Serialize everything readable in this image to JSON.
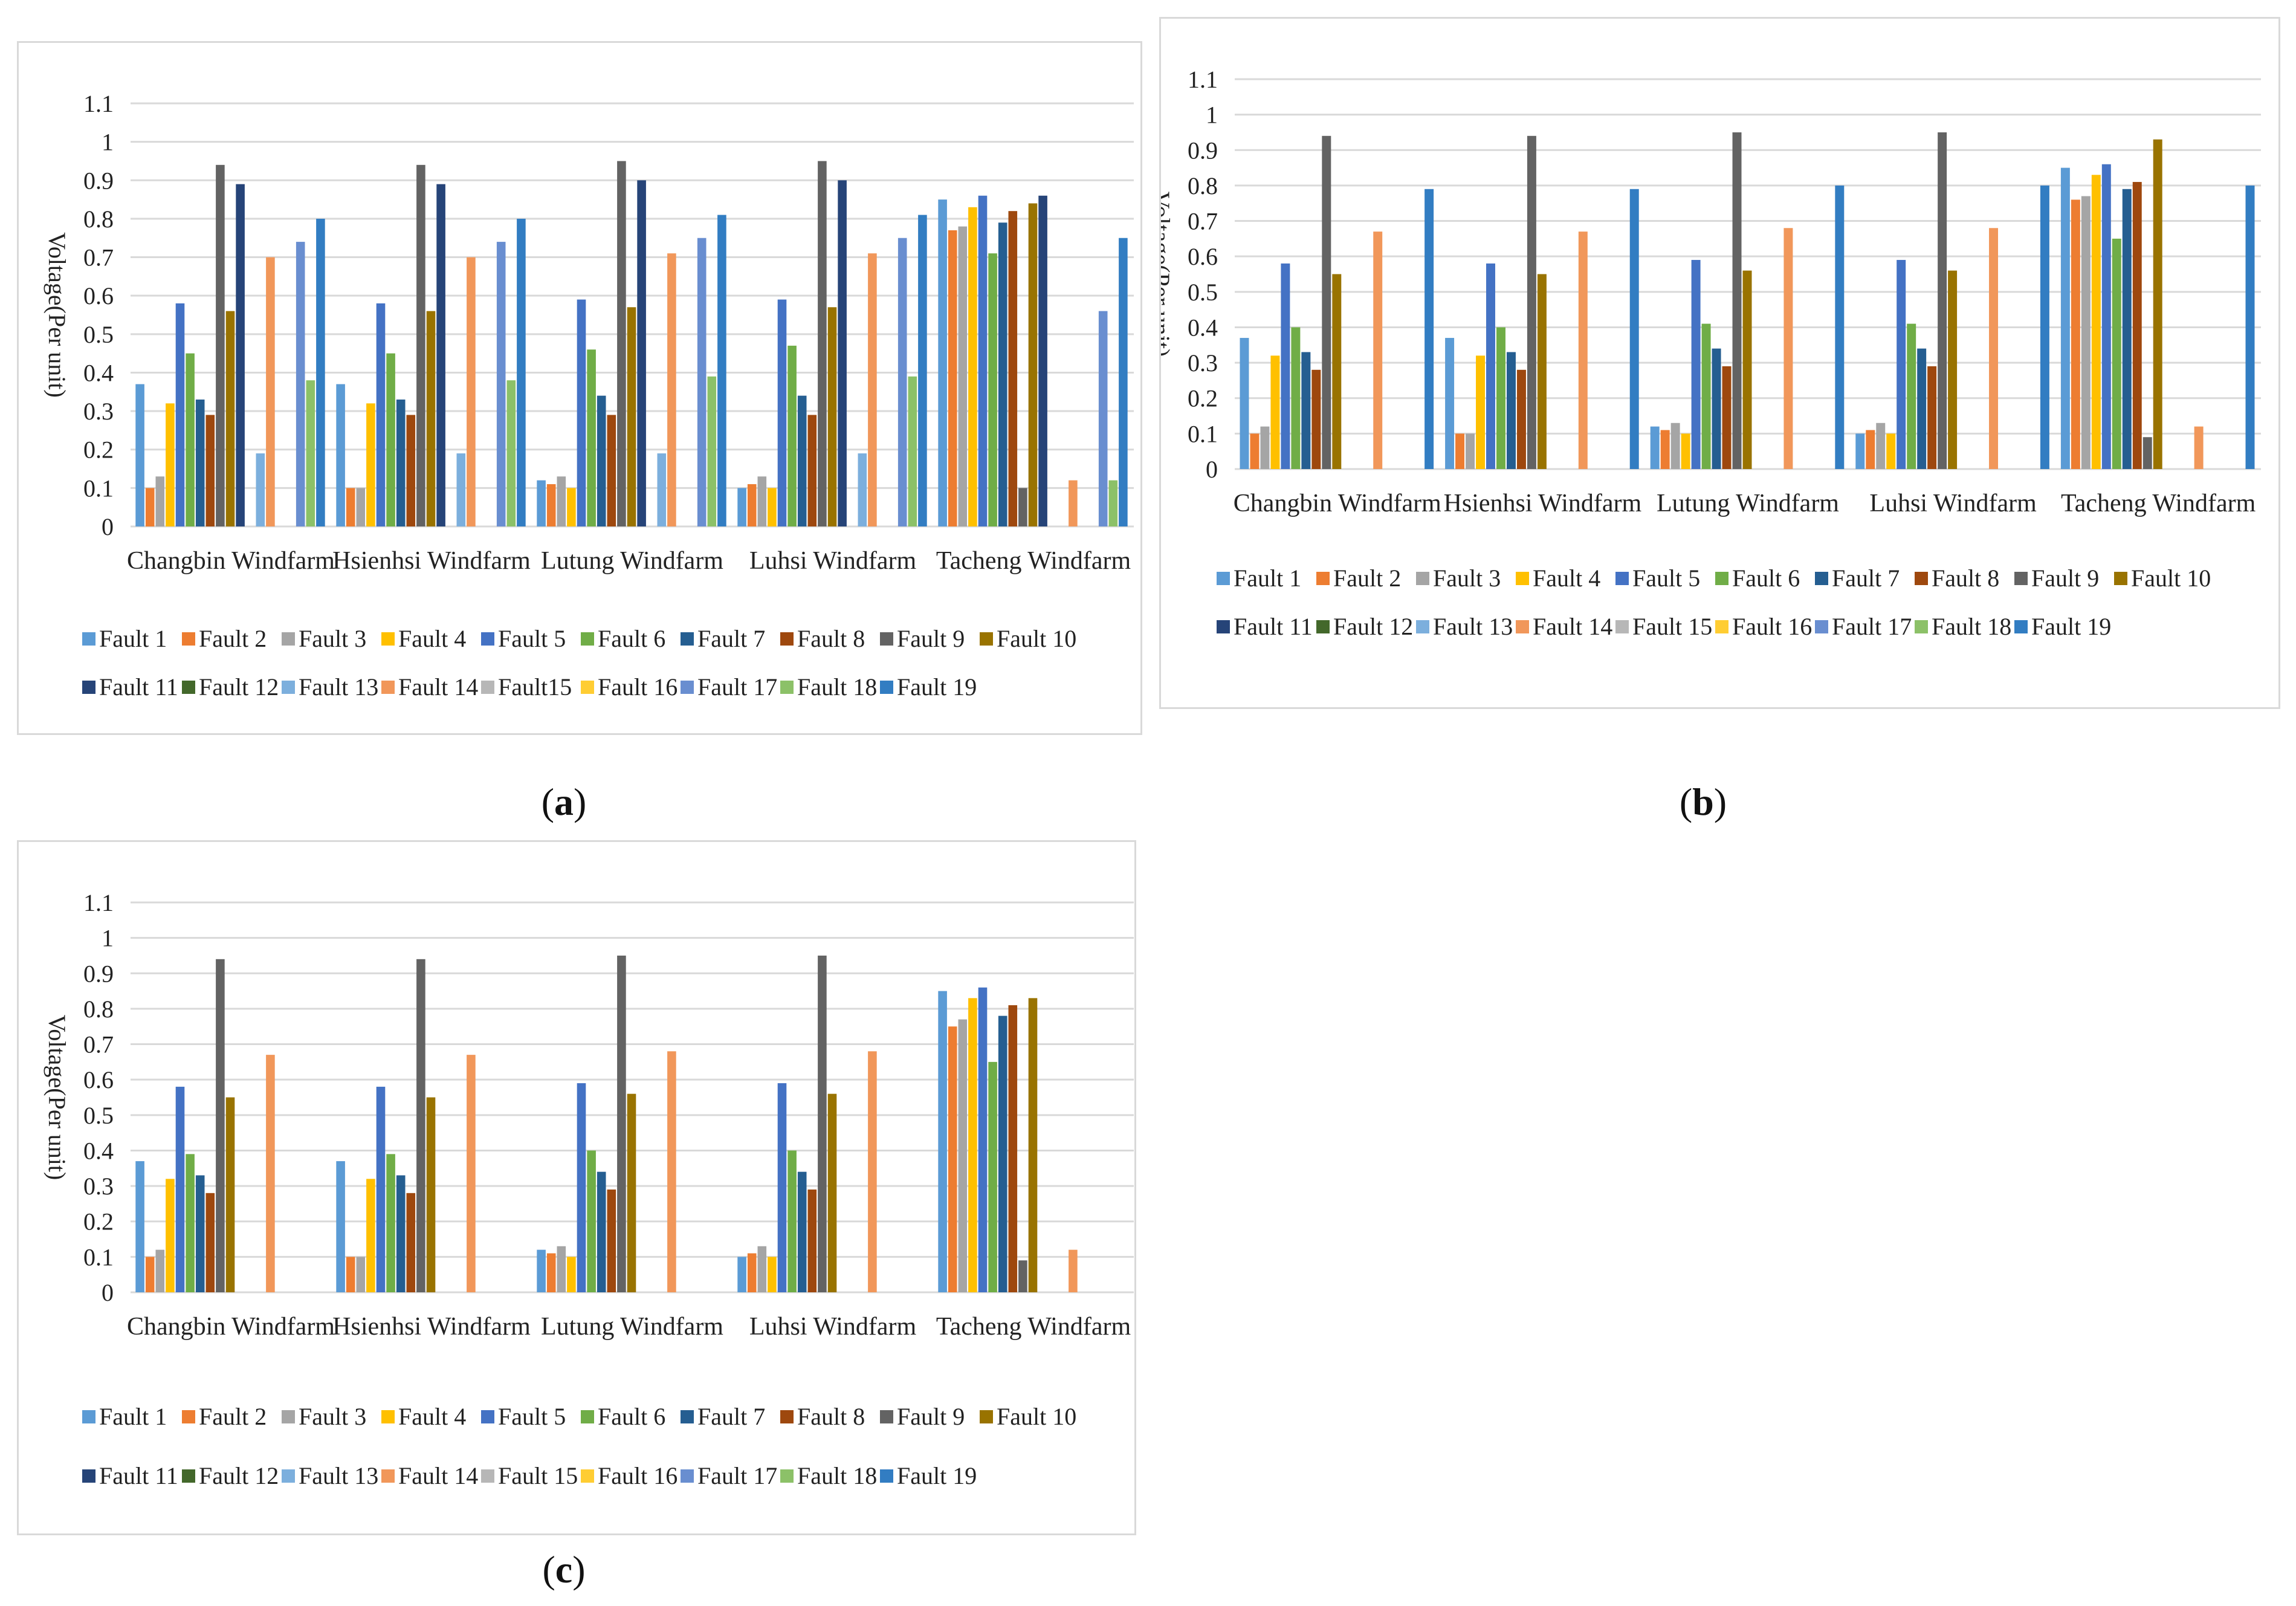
{
  "captions": {
    "a": "a",
    "b": "b",
    "c": "c"
  },
  "chart_data": [
    {
      "id": "a",
      "type": "bar",
      "ylabel": "Voltage(Per unit)",
      "ylim": [
        0,
        1.1
      ],
      "yticks": [
        "0",
        "0.1",
        "0.2",
        "0.3",
        "0.4",
        "0.5",
        "0.6",
        "0.7",
        "0.8",
        "0.9",
        "1",
        "1.1"
      ],
      "grid": true,
      "legend": "bottom",
      "categories": [
        "Changbin Windfarm",
        "Hsienhsi Windfarm",
        "Lutung Windfarm",
        "Luhsi Windfarm",
        "Tacheng Windfarm"
      ],
      "series": [
        {
          "name": "Fault 1",
          "values": [
            0.37,
            0.37,
            0.12,
            0.1,
            0.85
          ]
        },
        {
          "name": "Fault 2",
          "values": [
            0.1,
            0.1,
            0.11,
            0.11,
            0.77
          ]
        },
        {
          "name": "Fault 3",
          "values": [
            0.13,
            0.1,
            0.13,
            0.13,
            0.78
          ]
        },
        {
          "name": "Fault 4",
          "values": [
            0.32,
            0.32,
            0.1,
            0.1,
            0.83
          ]
        },
        {
          "name": "Fault 5",
          "values": [
            0.58,
            0.58,
            0.59,
            0.59,
            0.86
          ]
        },
        {
          "name": "Fault 6",
          "values": [
            0.45,
            0.45,
            0.46,
            0.47,
            0.71
          ]
        },
        {
          "name": "Fault 7",
          "values": [
            0.33,
            0.33,
            0.34,
            0.34,
            0.79
          ]
        },
        {
          "name": "Fault 8",
          "values": [
            0.29,
            0.29,
            0.29,
            0.29,
            0.82
          ]
        },
        {
          "name": "Fault 9",
          "values": [
            0.94,
            0.94,
            0.95,
            0.95,
            0.1
          ]
        },
        {
          "name": "Fault 10",
          "values": [
            0.56,
            0.56,
            0.57,
            0.57,
            0.84
          ]
        },
        {
          "name": "Fault 11",
          "values": [
            0.89,
            0.89,
            0.9,
            0.9,
            0.86
          ]
        },
        {
          "name": "Fault 12",
          "values": [
            0,
            0,
            0,
            0,
            0
          ]
        },
        {
          "name": "Fault 13",
          "values": [
            0.19,
            0.19,
            0.19,
            0.19,
            0
          ]
        },
        {
          "name": "Fault 14",
          "values": [
            0.7,
            0.7,
            0.71,
            0.71,
            0.12
          ]
        },
        {
          "name": "Fault15",
          "values": [
            0,
            0,
            0,
            0,
            0
          ]
        },
        {
          "name": "Fault 16",
          "values": [
            0,
            0,
            0,
            0,
            0
          ]
        },
        {
          "name": "Fault 17",
          "values": [
            0.74,
            0.74,
            0.75,
            0.75,
            0.56
          ]
        },
        {
          "name": "Fault 18",
          "values": [
            0.38,
            0.38,
            0.39,
            0.39,
            0.12
          ]
        },
        {
          "name": "Fault 19",
          "values": [
            0.8,
            0.8,
            0.81,
            0.81,
            0.75
          ]
        }
      ]
    },
    {
      "id": "b",
      "type": "bar",
      "ylabel": "Voltage(Per unit)",
      "ylim": [
        0,
        1.1
      ],
      "yticks": [
        "0",
        "0.1",
        "0.2",
        "0.3",
        "0.4",
        "0.5",
        "0.6",
        "0.7",
        "0.8",
        "0.9",
        "1",
        "1.1"
      ],
      "grid": true,
      "legend": "bottom",
      "categories": [
        "Changbin Windfarm",
        "Hsienhsi Windfarm",
        "Lutung Windfarm",
        "Luhsi Windfarm",
        "Tacheng Windfarm"
      ],
      "series": [
        {
          "name": "Fault 1",
          "values": [
            0.37,
            0.37,
            0.12,
            0.1,
            0.85
          ]
        },
        {
          "name": "Fault 2",
          "values": [
            0.1,
            0.1,
            0.11,
            0.11,
            0.76
          ]
        },
        {
          "name": "Fault 3",
          "values": [
            0.12,
            0.1,
            0.13,
            0.13,
            0.77
          ]
        },
        {
          "name": "Fault 4",
          "values": [
            0.32,
            0.32,
            0.1,
            0.1,
            0.83
          ]
        },
        {
          "name": "Fault 5",
          "values": [
            0.58,
            0.58,
            0.59,
            0.59,
            0.86
          ]
        },
        {
          "name": "Fault 6",
          "values": [
            0.4,
            0.4,
            0.41,
            0.41,
            0.65
          ]
        },
        {
          "name": "Fault 7",
          "values": [
            0.33,
            0.33,
            0.34,
            0.34,
            0.79
          ]
        },
        {
          "name": "Fault 8",
          "values": [
            0.28,
            0.28,
            0.29,
            0.29,
            0.81
          ]
        },
        {
          "name": "Fault 9",
          "values": [
            0.94,
            0.94,
            0.95,
            0.95,
            0.09
          ]
        },
        {
          "name": "Fault 10",
          "values": [
            0.55,
            0.55,
            0.56,
            0.56,
            0.93
          ]
        },
        {
          "name": "Fault 11",
          "values": [
            0,
            0,
            0,
            0,
            0
          ]
        },
        {
          "name": "Fault 12",
          "values": [
            0,
            0,
            0,
            0,
            0
          ]
        },
        {
          "name": "Fault 13",
          "values": [
            0,
            0,
            0,
            0,
            0
          ]
        },
        {
          "name": "Fault 14",
          "values": [
            0.67,
            0.67,
            0.68,
            0.68,
            0.12
          ]
        },
        {
          "name": "Fault 15",
          "values": [
            0,
            0,
            0,
            0,
            0
          ]
        },
        {
          "name": "Fault 16",
          "values": [
            0,
            0,
            0,
            0,
            0
          ]
        },
        {
          "name": "Fault 17",
          "values": [
            0,
            0,
            0,
            0,
            0
          ]
        },
        {
          "name": "Fault 18",
          "values": [
            0,
            0,
            0,
            0,
            0
          ]
        },
        {
          "name": "Fault 19",
          "values": [
            0.79,
            0.79,
            0.8,
            0.8,
            0.8
          ]
        }
      ]
    },
    {
      "id": "c",
      "type": "bar",
      "ylabel": "Voltage(Per unit)",
      "ylim": [
        0,
        1.1
      ],
      "yticks": [
        "0",
        "0.1",
        "0.2",
        "0.3",
        "0.4",
        "0.5",
        "0.6",
        "0.7",
        "0.8",
        "0.9",
        "1",
        "1.1"
      ],
      "grid": true,
      "legend": "bottom",
      "categories": [
        "Changbin Windfarm",
        "Hsienhsi Windfarm",
        "Lutung Windfarm",
        "Luhsi Windfarm",
        "Tacheng Windfarm"
      ],
      "series": [
        {
          "name": "Fault 1",
          "values": [
            0.37,
            0.37,
            0.12,
            0.1,
            0.85
          ]
        },
        {
          "name": "Fault 2",
          "values": [
            0.1,
            0.1,
            0.11,
            0.11,
            0.75
          ]
        },
        {
          "name": "Fault 3",
          "values": [
            0.12,
            0.1,
            0.13,
            0.13,
            0.77
          ]
        },
        {
          "name": "Fault 4",
          "values": [
            0.32,
            0.32,
            0.1,
            0.1,
            0.83
          ]
        },
        {
          "name": "Fault 5",
          "values": [
            0.58,
            0.58,
            0.59,
            0.59,
            0.86
          ]
        },
        {
          "name": "Fault 6",
          "values": [
            0.39,
            0.39,
            0.4,
            0.4,
            0.65
          ]
        },
        {
          "name": "Fault 7",
          "values": [
            0.33,
            0.33,
            0.34,
            0.34,
            0.78
          ]
        },
        {
          "name": "Fault 8",
          "values": [
            0.28,
            0.28,
            0.29,
            0.29,
            0.81
          ]
        },
        {
          "name": "Fault 9",
          "values": [
            0.94,
            0.94,
            0.95,
            0.95,
            0.09
          ]
        },
        {
          "name": "Fault 10",
          "values": [
            0.55,
            0.55,
            0.56,
            0.56,
            0.83
          ]
        },
        {
          "name": "Fault 11",
          "values": [
            0,
            0,
            0,
            0,
            0
          ]
        },
        {
          "name": "Fault 12",
          "values": [
            0,
            0,
            0,
            0,
            0
          ]
        },
        {
          "name": "Fault 13",
          "values": [
            0,
            0,
            0,
            0,
            0
          ]
        },
        {
          "name": "Fault 14",
          "values": [
            0.67,
            0.67,
            0.68,
            0.68,
            0.12
          ]
        },
        {
          "name": "Fault 15",
          "values": [
            0,
            0,
            0,
            0,
            0
          ]
        },
        {
          "name": "Fault 16",
          "values": [
            0,
            0,
            0,
            0,
            0
          ]
        },
        {
          "name": "Fault 17",
          "values": [
            0,
            0,
            0,
            0,
            0
          ]
        },
        {
          "name": "Fault 18",
          "values": [
            0,
            0,
            0,
            0,
            0
          ]
        },
        {
          "name": "Fault 19",
          "values": [
            0,
            0,
            0,
            0,
            0
          ]
        }
      ]
    }
  ],
  "colors": [
    "#5b9bd5",
    "#ed7d31",
    "#a5a5a5",
    "#ffc000",
    "#4472c4",
    "#70ad47",
    "#255e91",
    "#9e480e",
    "#636363",
    "#997300",
    "#264478",
    "#43682b",
    "#7cafdd",
    "#f1975a",
    "#b7b7b7",
    "#ffcd33",
    "#698ed0",
    "#8cc168",
    "#327dc2"
  ]
}
